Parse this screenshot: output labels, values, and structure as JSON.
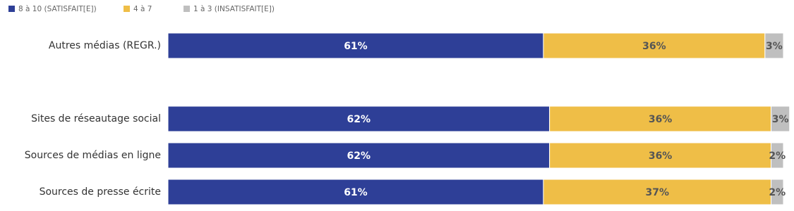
{
  "chart_data": {
    "type": "stacked_bar_horizontal",
    "categories": [
      "Autres médias (REGR.)",
      null,
      "Sites de réseautage social",
      "Sources de médias en ligne",
      "Sources de presse écrite"
    ],
    "series": [
      {
        "name": "8 à 10 (SATISFAIT[E])",
        "color": "#2e3f97",
        "values": [
          61,
          null,
          62,
          62,
          61
        ],
        "value_labels": [
          "61%",
          null,
          "62%",
          "62%",
          "61%"
        ]
      },
      {
        "name": "4 à 7",
        "color": "#efbe47",
        "values": [
          36,
          null,
          36,
          36,
          37
        ],
        "value_labels": [
          "36%",
          null,
          "36%",
          "36%",
          "37%"
        ]
      },
      {
        "name": "1 à 3 (INSATISFAIT[E])",
        "color": "#bfbfbf",
        "values": [
          3,
          null,
          3,
          2,
          2
        ],
        "value_labels": [
          "3%",
          null,
          "3%",
          "2%",
          "2%"
        ]
      }
    ],
    "xlim": [
      0,
      100
    ],
    "legend": "top-left"
  }
}
